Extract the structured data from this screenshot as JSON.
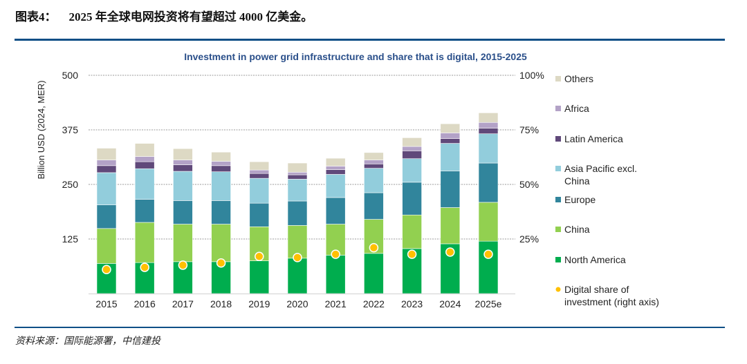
{
  "figure": {
    "label": "图表4：",
    "title": "2025 年全球电网投资将有望超过 4000 亿美金。",
    "source": "资料来源：国际能源署，中信建投"
  },
  "chart_data": {
    "type": "bar",
    "stacked": true,
    "title": "Investment in power grid infrastructure and share that is digital, 2015-2025",
    "xlabel": "",
    "ylabel": "Billion USD (2024, MER)",
    "ylim": [
      0,
      500
    ],
    "yticks": [
      125,
      250,
      375,
      500
    ],
    "y2lim": [
      0,
      100
    ],
    "y2ticks": [
      "25%",
      "50%",
      "75%",
      "100%"
    ],
    "y2ticks_values": [
      25,
      50,
      75,
      100
    ],
    "grid": true,
    "legend_position": "right",
    "categories": [
      "2015",
      "2016",
      "2017",
      "2018",
      "2019",
      "2020",
      "2021",
      "2022",
      "2023",
      "2024",
      "2025e"
    ],
    "series": [
      {
        "name": "North America",
        "color": "#00ad4e",
        "values": [
          69,
          71,
          73,
          73,
          75,
          81,
          88,
          92,
          103,
          114,
          120
        ]
      },
      {
        "name": "China",
        "color": "#92d050",
        "values": [
          80,
          92,
          86,
          86,
          78,
          75,
          71,
          78,
          77,
          83,
          89
        ]
      },
      {
        "name": "Europe",
        "color": "#31859c",
        "values": [
          54,
          53,
          54,
          54,
          54,
          56,
          61,
          61,
          75,
          84,
          90
        ]
      },
      {
        "name": "Asia Pacific excl. China",
        "color": "#92cddc",
        "values": [
          74,
          70,
          67,
          66,
          57,
          50,
          53,
          56,
          54,
          63,
          67
        ]
      },
      {
        "name": "Latin America",
        "color": "#60497a",
        "values": [
          16,
          16,
          15,
          14,
          11,
          10,
          11,
          10,
          18,
          11,
          13
        ]
      },
      {
        "name": "Africa",
        "color": "#b3a2c7",
        "values": [
          13,
          12,
          11,
          10,
          8,
          6,
          8,
          9,
          10,
          13,
          13
        ]
      },
      {
        "name": "Others",
        "color": "#ddd9c4",
        "values": [
          27,
          30,
          26,
          21,
          19,
          21,
          18,
          17,
          20,
          21,
          22
        ]
      }
    ],
    "line_series": {
      "name": "Digital share of investment (right axis)",
      "color": "#ffc000",
      "axis": "right",
      "unit": "%",
      "values": [
        11,
        12,
        13,
        14,
        17,
        16.5,
        18,
        21,
        18,
        19,
        18
      ]
    },
    "legend": [
      {
        "label": "Others",
        "color": "#ddd9c4",
        "shape": "square"
      },
      {
        "label": "Africa",
        "color": "#b3a2c7",
        "shape": "square"
      },
      {
        "label": "Latin America",
        "color": "#60497a",
        "shape": "square"
      },
      {
        "label": "Asia Pacific excl.",
        "label2": "China",
        "color": "#92cddc",
        "shape": "square"
      },
      {
        "label": "Europe",
        "color": "#31859c",
        "shape": "square"
      },
      {
        "label": "China",
        "color": "#92d050",
        "shape": "square"
      },
      {
        "label": "North America",
        "color": "#00ad4e",
        "shape": "square"
      },
      {
        "label": "Digital share of",
        "label2": "investment (right axis)",
        "color": "#ffc000",
        "shape": "circle"
      }
    ]
  }
}
